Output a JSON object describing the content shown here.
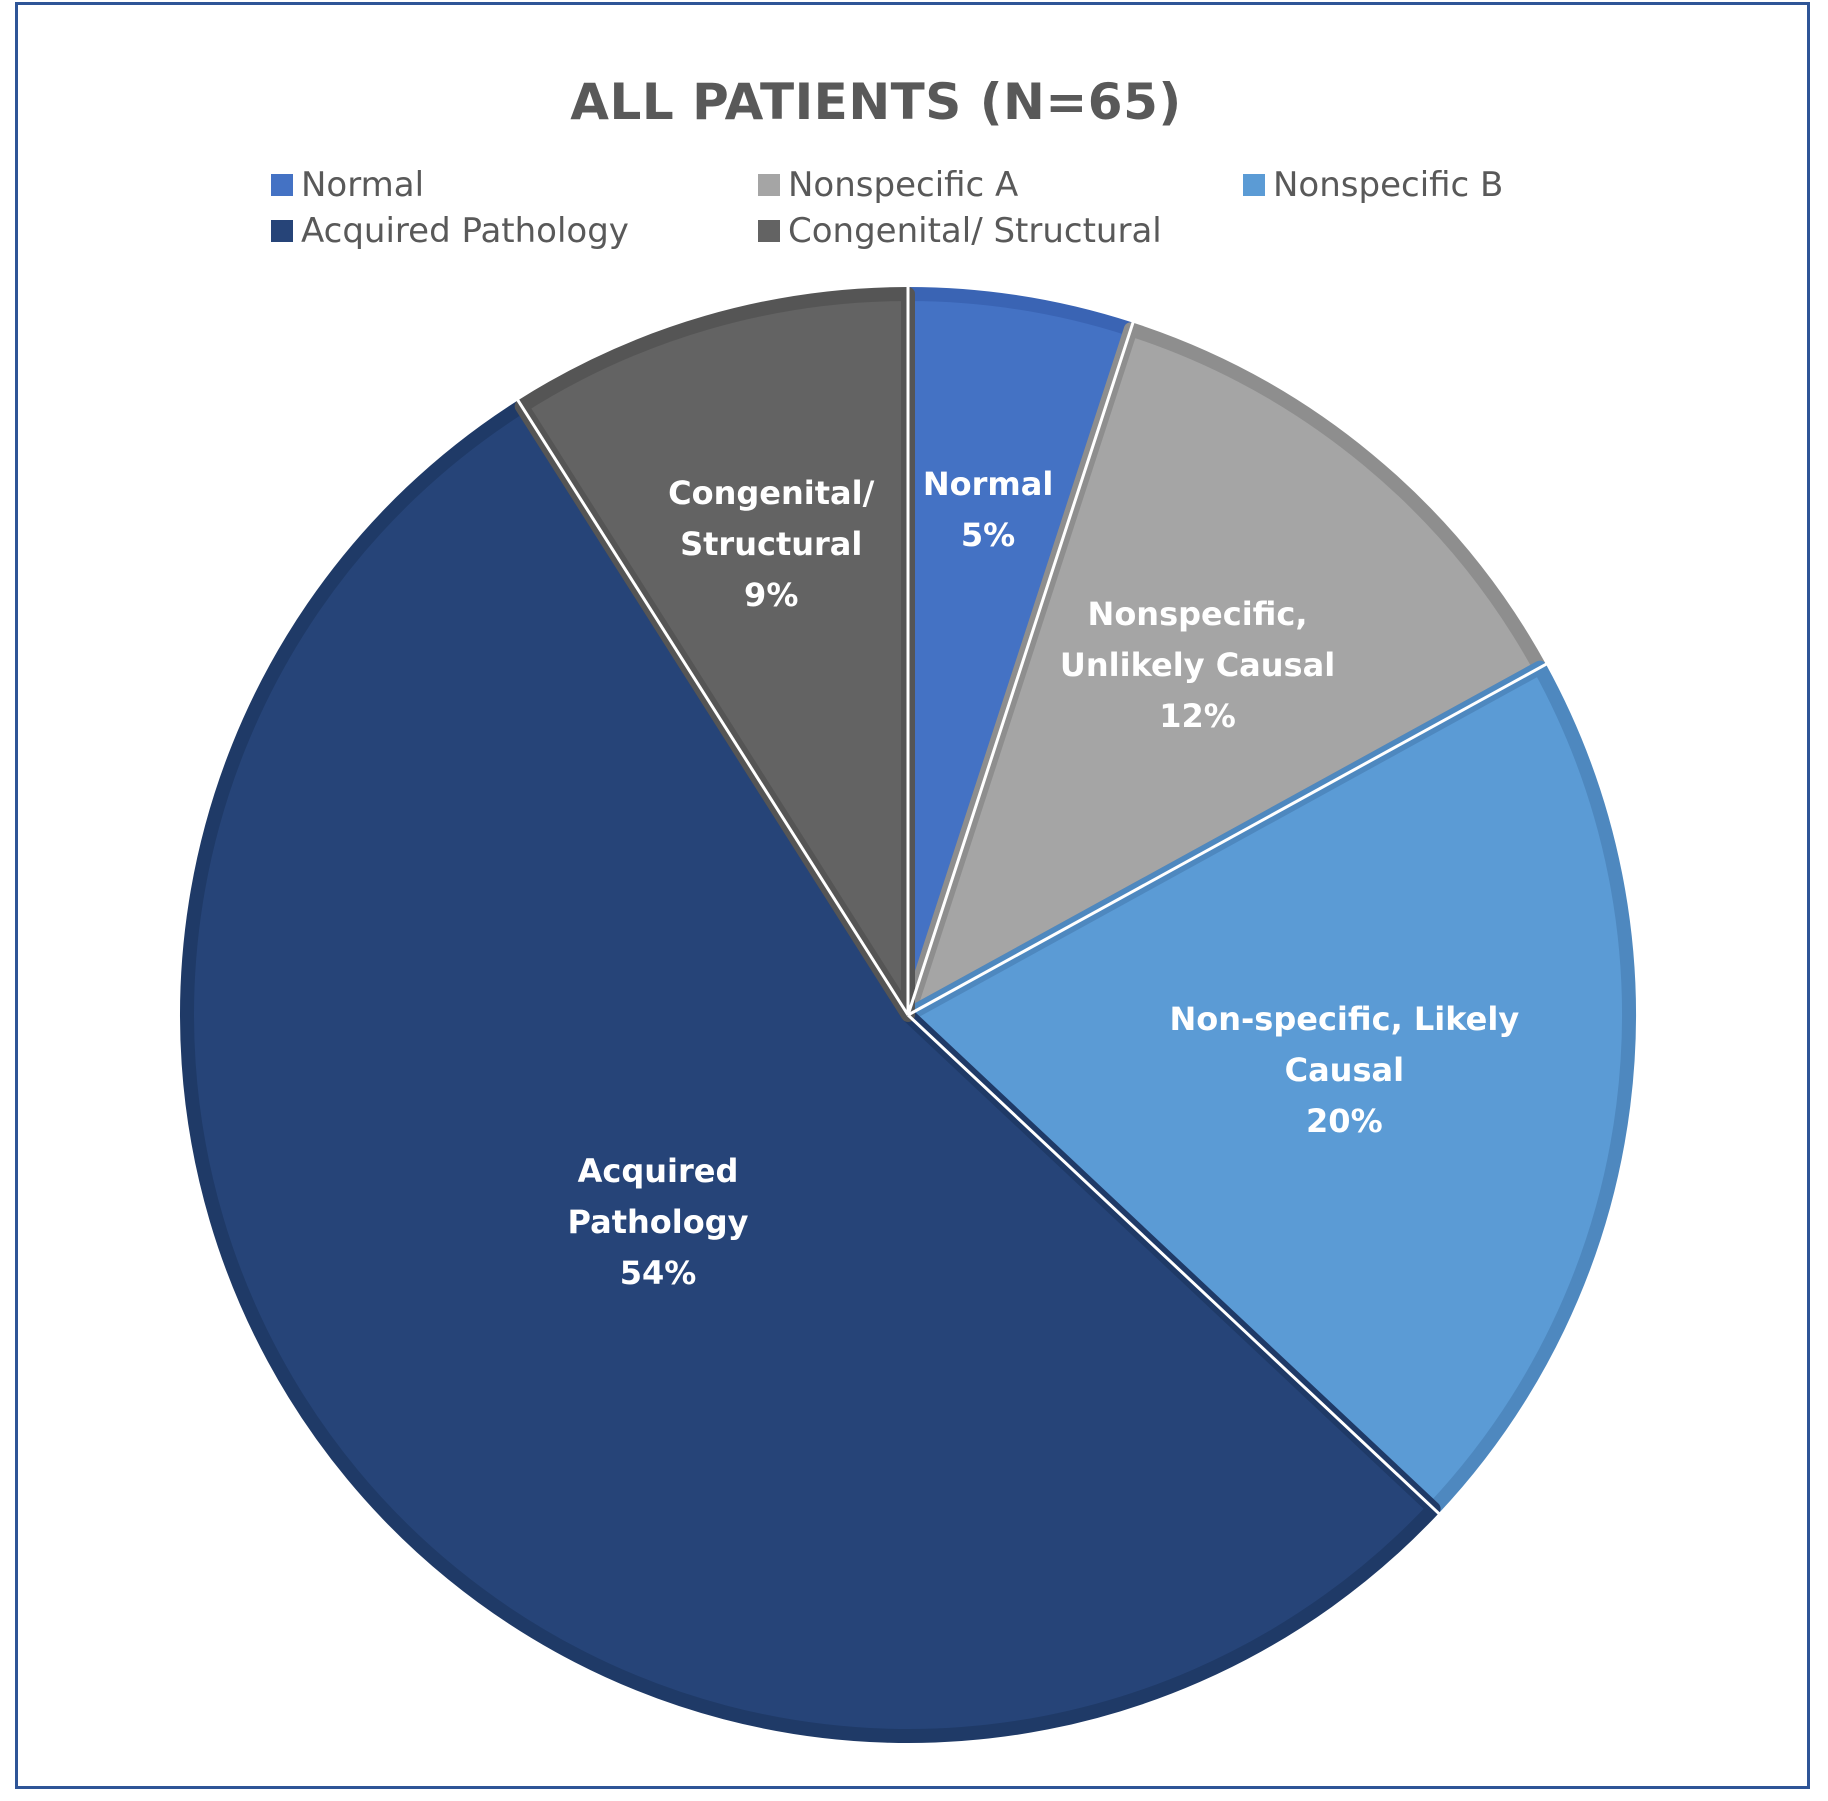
{
  "chart_data": {
    "type": "pie",
    "title": "ALL PATIENTS (N=65)",
    "legend_position": "top",
    "slices": [
      {
        "legend": "Normal",
        "label_lines": [
          "Normal",
          "5%"
        ],
        "value": 5,
        "color": "#4472c4",
        "stroke": "#3a64b4"
      },
      {
        "legend": "Nonspecific A",
        "label_lines": [
          "Nonspecific,",
          "Unlikely Causal",
          "12%"
        ],
        "value": 12,
        "color": "#a5a5a5",
        "stroke": "#8e8e8e"
      },
      {
        "legend": "Nonspecific B",
        "label_lines": [
          "Non-specific, Likely",
          "Causal",
          "20%"
        ],
        "value": 20,
        "color": "#5b9bd5",
        "stroke": "#4e88bf"
      },
      {
        "legend": "Acquired Pathology",
        "label_lines": [
          "Acquired",
          "Pathology",
          "54%"
        ],
        "value": 54,
        "color": "#264478",
        "stroke": "#1f3a67"
      },
      {
        "legend": "Congenital/ Structural",
        "label_lines": [
          "Congenital/",
          "Structural",
          "9%"
        ],
        "value": 9,
        "color": "#636363",
        "stroke": "#555555"
      }
    ]
  }
}
